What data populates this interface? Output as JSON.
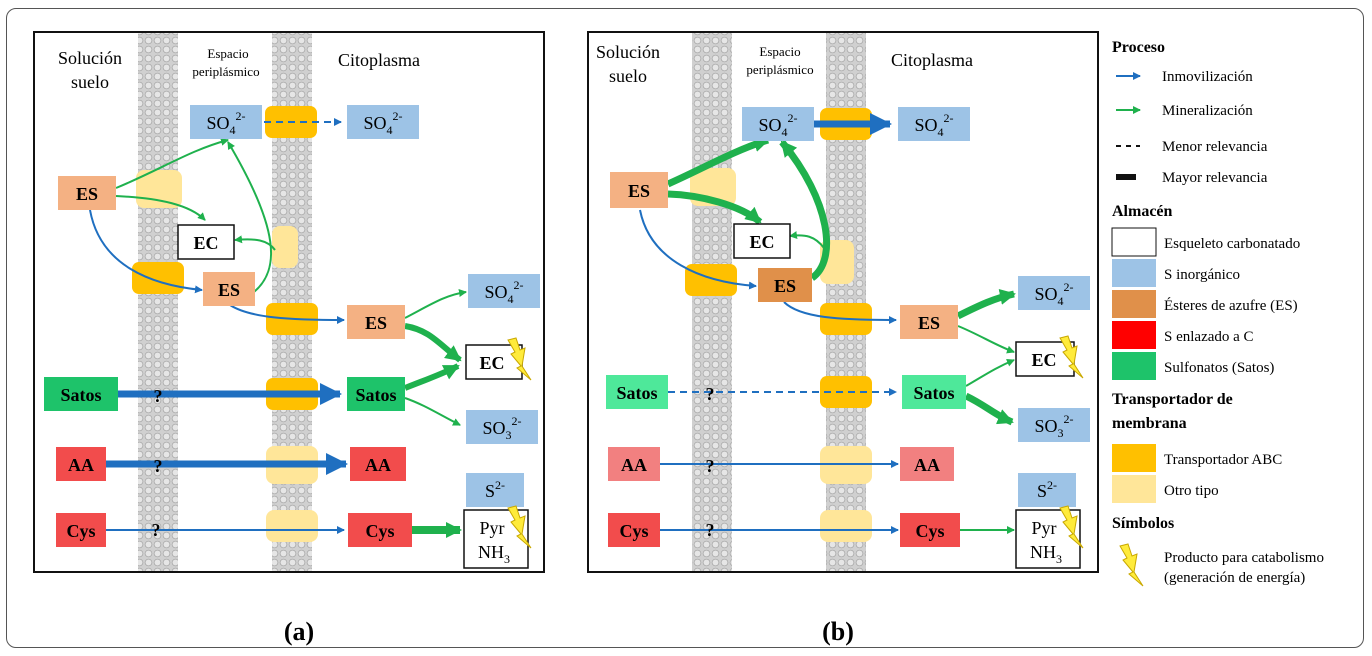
{
  "regions": {
    "soil": [
      "Solución",
      "suelo"
    ],
    "periplasm": [
      "Espacio",
      "periplásmico"
    ],
    "cytoplasm": "Citoplasma"
  },
  "compounds": {
    "sulfate_base": "SO",
    "sulfate_sub": "4",
    "sulfate_sup": "2-",
    "sulfite_base": "SO",
    "sulfite_sub": "3",
    "sulfite_sup": "2-",
    "sulfide_base": "S",
    "sulfide_sup": "2-",
    "es": "ES",
    "ec": "EC",
    "satos": "Satos",
    "aa": "AA",
    "cys": "Cys",
    "pyr": "Pyr",
    "nh3_base": "NH",
    "nh3_sub": "3"
  },
  "unknown_mark": "?",
  "panel_labels": [
    "(a)",
    "(b)"
  ],
  "legend": {
    "process_title": "Proceso",
    "immobilization": "Inmovilización",
    "mineralization": "Mineralización",
    "minor": "Menor relevancia",
    "major": "Mayor relevancia",
    "storage_title": "Almacén",
    "carbon_skeleton": "Esqueleto carbonatado",
    "inorganic_s": "S inorgánico",
    "sulfate_esters": "Ésteres de azufre (ES)",
    "c_bonded_s": "S enlazado a C",
    "sulfonates": "Sulfonatos (Satos)",
    "transporter_title_1": "Transportador de",
    "transporter_title_2": "membrana",
    "abc_transporter": "Transportador ABC",
    "other_type": "Otro tipo",
    "symbols_title": "Símbolos",
    "catabolism_1": "Producto para catabolismo",
    "catabolism_2": "(generación de energía)"
  },
  "colors": {
    "inorganic_blue": "#9dc3e6",
    "ester_light": "#f4b183",
    "ester_dark": "#e0904a",
    "c_bonded_red": "#f24c4c",
    "c_bonded_light": "#f28080",
    "sulfonate_green": "#1ec36a",
    "sulfonate_light": "#4ee89a",
    "abc_orange": "#ffc000",
    "other_tan": "#ffe699",
    "immobilization_blue": "#1f6fc0",
    "mineralization_green": "#1fb14d",
    "membrane_gray": "#cfcfcf",
    "bolt_yellow": "#ffeb3b"
  }
}
